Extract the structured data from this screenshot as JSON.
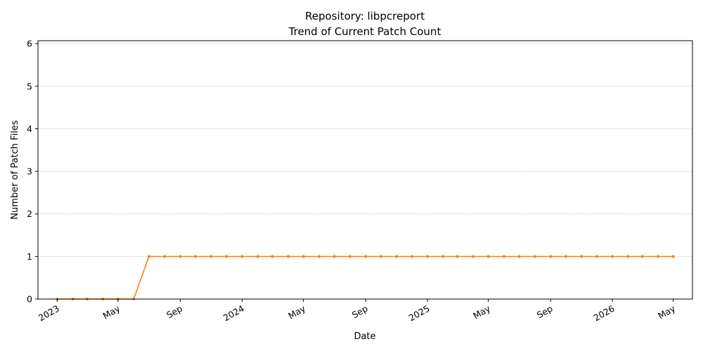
{
  "chart_data": {
    "type": "line",
    "title": "Repository: libpcreport",
    "subtitle": "Trend of Current Patch Count",
    "xlabel": "Date",
    "ylabel": "Number of Patch Files",
    "ylim": [
      0,
      6.07
    ],
    "yticks": [
      0,
      1,
      2,
      3,
      4,
      5,
      6
    ],
    "xlim": [
      "2022-11-24",
      "2026-06-08"
    ],
    "xticks": [
      {
        "date": "2023-01-01",
        "label": "2023"
      },
      {
        "date": "2023-05-01",
        "label": "May"
      },
      {
        "date": "2023-09-01",
        "label": "Sep"
      },
      {
        "date": "2024-01-01",
        "label": "2024"
      },
      {
        "date": "2024-05-01",
        "label": "May"
      },
      {
        "date": "2024-09-01",
        "label": "Sep"
      },
      {
        "date": "2025-01-01",
        "label": "2025"
      },
      {
        "date": "2025-05-01",
        "label": "May"
      },
      {
        "date": "2025-09-01",
        "label": "Sep"
      },
      {
        "date": "2026-01-01",
        "label": "2026"
      },
      {
        "date": "2026-05-01",
        "label": "May"
      }
    ],
    "grid": "y",
    "series": [
      {
        "color": "#ff7f0e",
        "x": [
          "2023-01-01",
          "2023-02-01",
          "2023-03-01",
          "2023-04-01",
          "2023-05-01",
          "2023-06-01",
          "2023-07-01",
          "2023-08-01",
          "2023-09-01",
          "2023-10-01",
          "2023-11-01",
          "2023-12-01",
          "2024-01-01",
          "2024-02-01",
          "2024-03-01",
          "2024-04-01",
          "2024-05-01",
          "2024-06-01",
          "2024-07-01",
          "2024-08-01",
          "2024-09-01",
          "2024-10-01",
          "2024-11-01",
          "2024-12-01",
          "2025-01-01",
          "2025-02-01",
          "2025-03-01",
          "2025-04-01",
          "2025-05-01",
          "2025-06-01",
          "2025-07-01",
          "2025-08-01",
          "2025-09-01",
          "2025-10-01",
          "2025-11-01",
          "2025-12-01",
          "2026-01-01",
          "2026-02-01",
          "2026-03-01",
          "2026-04-01",
          "2026-05-01"
        ],
        "values": [
          0,
          0,
          0,
          0,
          0,
          0,
          1,
          1,
          1,
          1,
          1,
          1,
          1,
          1,
          1,
          1,
          1,
          1,
          1,
          1,
          1,
          1,
          1,
          1,
          1,
          1,
          1,
          1,
          1,
          1,
          1,
          1,
          1,
          1,
          1,
          1,
          1,
          1,
          1,
          1,
          1
        ]
      }
    ]
  }
}
